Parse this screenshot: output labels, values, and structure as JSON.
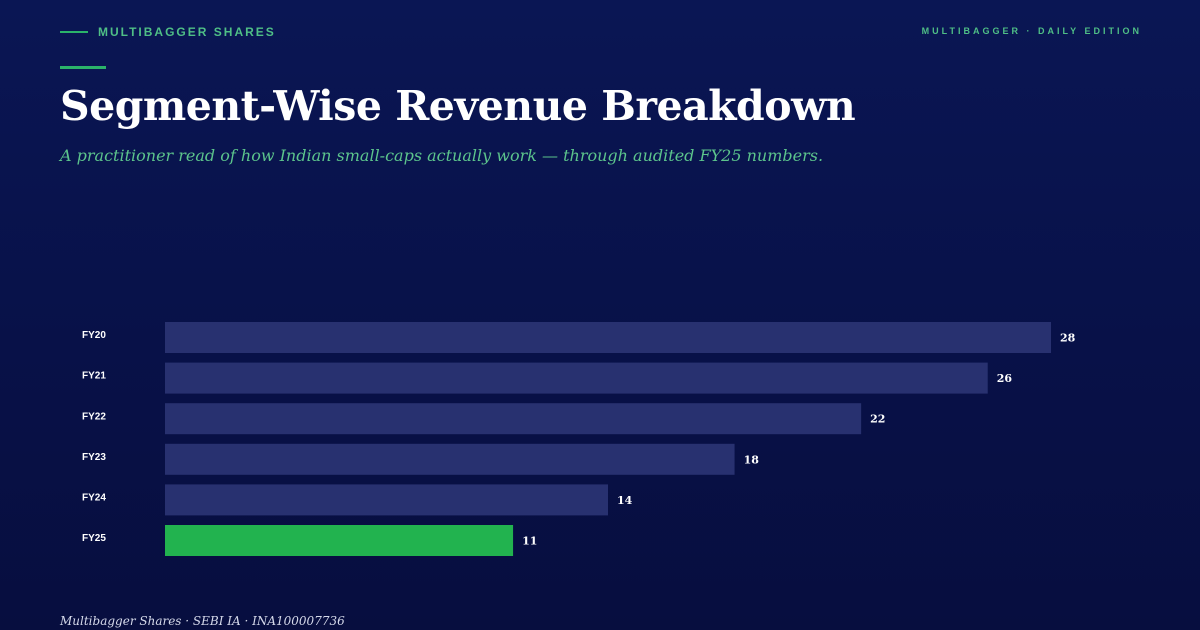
{
  "header": {
    "brand": "MULTIBAGGER SHARES",
    "edition": "MULTIBAGGER · DAILY EDITION"
  },
  "title": "Segment-Wise Revenue Breakdown",
  "subtitle": "A practitioner read of how Indian small-caps actually work — through audited FY25 numbers.",
  "footer": "Multibagger Shares · SEBI IA · INA100007736",
  "colors": {
    "bar": "#283170",
    "highlight": "#22b34f",
    "accent": "#2bb36a"
  },
  "chart_data": {
    "type": "bar",
    "orientation": "horizontal",
    "categories": [
      "FY20",
      "FY21",
      "FY22",
      "FY23",
      "FY24",
      "FY25"
    ],
    "values": [
      28,
      26,
      22,
      18,
      14,
      11
    ],
    "highlight_category": "FY25",
    "data_labels": true,
    "grid": false,
    "title": "",
    "xlabel": "",
    "ylabel": ""
  }
}
